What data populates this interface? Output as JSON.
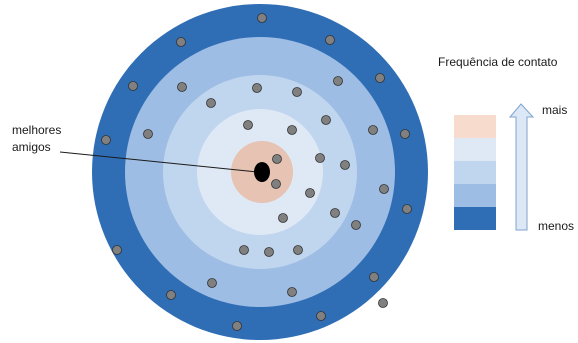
{
  "annotation": {
    "label_line1": "melhores",
    "label_line2": "amigos"
  },
  "legend": {
    "title": "Frequência de contato",
    "high_label": "mais",
    "low_label": "menos",
    "levels": [
      {
        "color": "#f7dccd"
      },
      {
        "color": "#dfe9f6"
      },
      {
        "color": "#c0d5ee"
      },
      {
        "color": "#9dbde4"
      },
      {
        "color": "#2f6db5"
      }
    ]
  },
  "colors": {
    "outer_ring": "#2f6db5",
    "ring_2": "#9dbde4",
    "ring_3": "#c0d5ee",
    "ring_4": "#dfe9f6",
    "core": "#e6c3b2",
    "center": "#000000",
    "person_dot": "#808080",
    "arrow_fill": "#dce8f6",
    "arrow_stroke": "#7fa3cf"
  },
  "icons": {
    "person": "gray-dot",
    "self": "black-ellipse",
    "direction": "up-arrow"
  }
}
